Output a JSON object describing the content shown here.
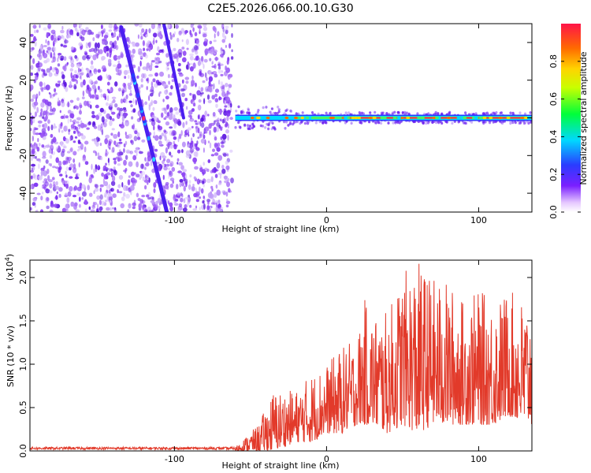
{
  "title": "C2E5.2026.066.00.10.G30",
  "colors": {
    "snr_line": "#e23a2a",
    "spec_dot_low": "#6a1aef",
    "spec_dot_faint": "#c9a8f7"
  },
  "chart_data": [
    {
      "type": "heatmap",
      "title": "C2E5.2026.066.00.10.G30",
      "xlabel": "Height of straight line (km)",
      "ylabel": "Frequency (Hz)",
      "xlim": [
        -195,
        135
      ],
      "ylim": [
        -50,
        50
      ],
      "x_ticks": [
        -100,
        0,
        100
      ],
      "x_tick_labels": [
        "-100",
        "0",
        "100"
      ],
      "y_ticks": [
        -40,
        -20,
        0,
        20,
        40
      ],
      "y_tick_labels": [
        "-40",
        "-20",
        "0",
        "20",
        "40"
      ],
      "colorbar": {
        "label": "Normalized spectral amplitude",
        "range": [
          0,
          1
        ],
        "ticks": [
          0.0,
          0.2,
          0.4,
          0.6,
          0.8
        ],
        "tick_labels": [
          "0.0",
          "0.2",
          "0.4",
          "0.6",
          "0.8"
        ]
      },
      "features": [
        {
          "name": "diagonal trace 1",
          "from": [
            -135,
            48
          ],
          "to": [
            -105,
            -50
          ]
        },
        {
          "name": "diagonal trace 2",
          "from": [
            -107,
            50
          ],
          "to": [
            -94,
            0
          ]
        },
        {
          "name": "noise region",
          "x_range": [
            -195,
            -62
          ]
        },
        {
          "name": "stable zero-frequency band",
          "x_range": [
            -60,
            135
          ],
          "frequency": 0
        }
      ]
    },
    {
      "type": "line",
      "xlabel": "Height of straight line (km)",
      "ylabel": "SNR (10 * v/v)",
      "y_multiplier": "(x10",
      "y_multiplier_exp": "4",
      "y_multiplier_close": ")",
      "xlim": [
        -195,
        135
      ],
      "ylim": [
        0,
        2.2
      ],
      "x_ticks": [
        -100,
        0,
        100
      ],
      "x_tick_labels": [
        "-100",
        "0",
        "100"
      ],
      "y_ticks": [
        0,
        0.5,
        1.0,
        1.5,
        2.0
      ],
      "y_tick_labels": [
        "0.0",
        "0.5",
        "1.0",
        "1.5",
        "2.0"
      ],
      "envelope": {
        "x": [
          -195,
          -60,
          -45,
          -35,
          -20,
          -10,
          0,
          10,
          20,
          25,
          30,
          40,
          50,
          60,
          70,
          80,
          90,
          100,
          110,
          120,
          130,
          135
        ],
        "lower": [
          0.0,
          0.0,
          0.0,
          0.0,
          0.1,
          0.1,
          0.2,
          0.2,
          0.3,
          0.3,
          0.3,
          0.2,
          0.3,
          0.2,
          0.3,
          0.3,
          0.3,
          0.3,
          0.3,
          0.4,
          0.3,
          0.3
        ],
        "upper": [
          0.04,
          0.05,
          0.3,
          0.7,
          0.7,
          0.9,
          1.0,
          1.2,
          1.3,
          1.75,
          1.6,
          1.6,
          2.05,
          2.2,
          2.0,
          1.95,
          1.75,
          1.85,
          1.75,
          1.85,
          1.75,
          1.7
        ]
      }
    }
  ]
}
